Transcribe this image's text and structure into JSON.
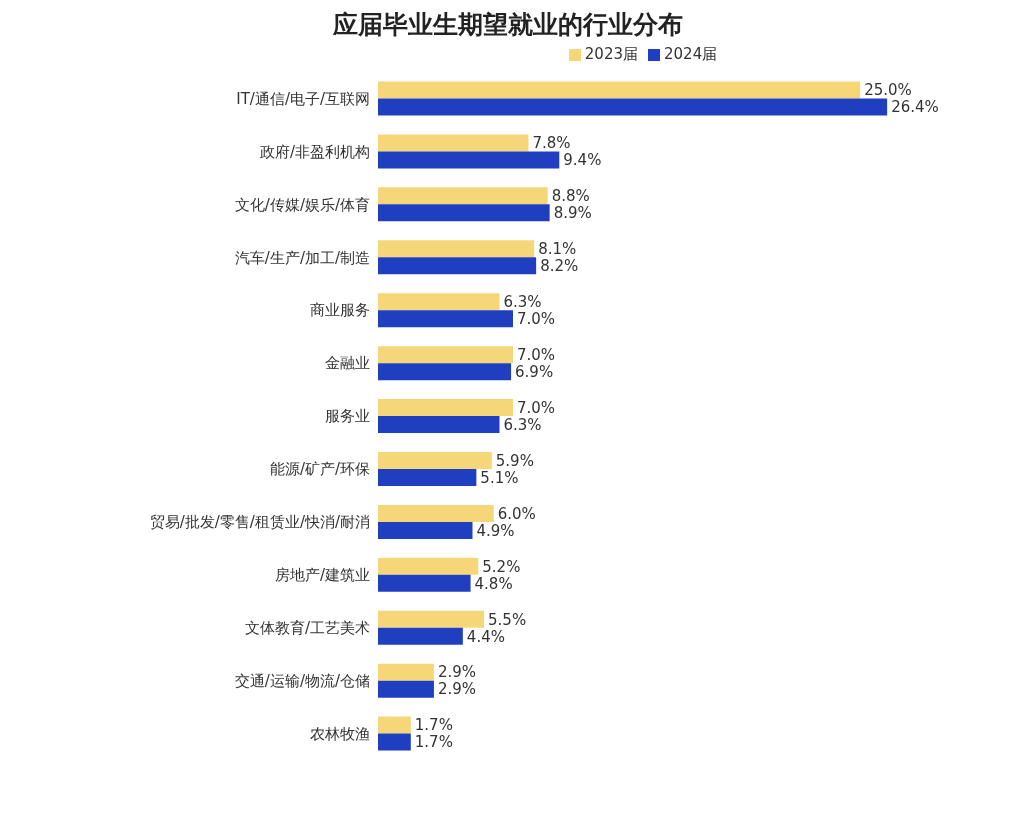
{
  "chart_data": {
    "type": "bar",
    "orientation": "horizontal",
    "title": "应届毕业生期望就业的行业分布",
    "categories": [
      "IT/通信/电子/互联网",
      "政府/非盈利机构",
      "文化/传媒/娱乐/体育",
      "汽车/生产/加工/制造",
      "商业服务",
      "金融业",
      "服务业",
      "能源/矿产/环保",
      "贸易/批发/零售/租赁业/快消/耐消",
      "房地产/建筑业",
      "文体教育/工艺美术",
      "交通/运输/物流/仓储",
      "农林牧渔"
    ],
    "series": [
      {
        "name": "2023届",
        "color": "#f5d77a",
        "values": [
          25.0,
          7.8,
          8.8,
          8.1,
          6.3,
          7.0,
          7.0,
          5.9,
          6.0,
          5.2,
          5.5,
          2.9,
          1.7
        ],
        "value_labels": [
          "25.0%",
          "7.8%",
          "8.8%",
          "8.1%",
          "6.3%",
          "7.0%",
          "7.0%",
          "5.9%",
          "6.0%",
          "5.2%",
          "5.5%",
          "2.9%",
          "1.7%"
        ]
      },
      {
        "name": "2024届",
        "color": "#1f3fc0",
        "values": [
          26.4,
          9.4,
          8.9,
          8.2,
          7.0,
          6.9,
          6.3,
          5.1,
          4.9,
          4.8,
          4.4,
          2.9,
          1.7
        ],
        "value_labels": [
          "26.4%",
          "9.4%",
          "8.9%",
          "8.2%",
          "7.0%",
          "6.9%",
          "6.3%",
          "5.1%",
          "4.9%",
          "4.8%",
          "4.4%",
          "2.9%",
          "1.7%"
        ]
      }
    ],
    "tick_labels": "y",
    "legend": "top"
  }
}
